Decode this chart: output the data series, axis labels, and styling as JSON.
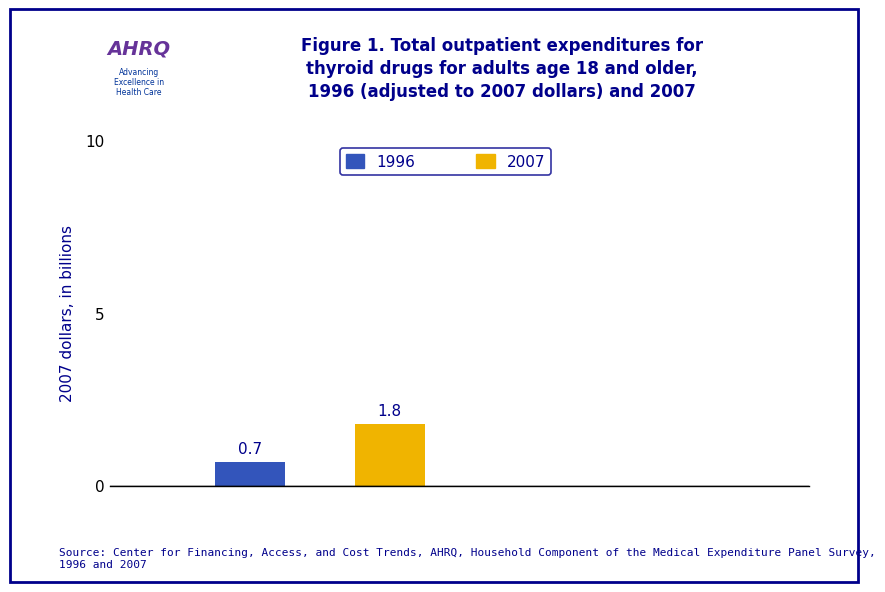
{
  "title_line1": "Figure 1. Total outpatient expenditures for",
  "title_line2": "thyroid drugs for adults age 18 and older,",
  "title_line3": "1996 (adjusted to 2007 dollars) and 2007",
  "bar_values": [
    0.7,
    1.8
  ],
  "bar_colors": [
    "#3355bb",
    "#f0b400"
  ],
  "bar_positions": [
    2,
    4
  ],
  "bar_width": 1.0,
  "ylim": [
    0,
    10
  ],
  "yticks": [
    0,
    5,
    10
  ],
  "xlim": [
    0,
    10
  ],
  "ylabel": "2007 dollars, in billions",
  "value_labels": [
    "0.7",
    "1.8"
  ],
  "legend_labels": [
    "1996",
    "2007"
  ],
  "source_text": "Source: Center for Financing, Access, and Cost Trends, AHRQ, Household Component of the Medical Expenditure Panel Survey,\n1996 and 2007",
  "title_color": "#00008B",
  "bar_label_color": "#00008B",
  "ylabel_color": "#00008B",
  "tick_color": "#000000",
  "source_color": "#00008B",
  "background_color": "#ffffff",
  "header_line_color": "#00008B",
  "border_color": "#00008B"
}
